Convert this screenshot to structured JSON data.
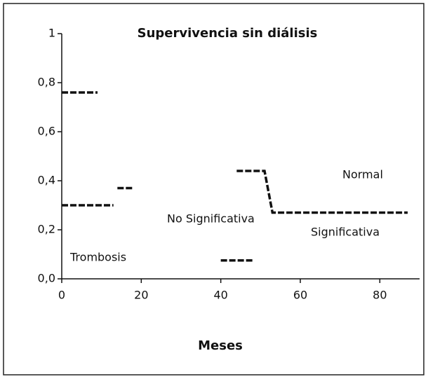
{
  "chart_data": {
    "type": "line",
    "title": "Supervivencia sin diálisis",
    "x_label": "Meses",
    "xlim": [
      0,
      90
    ],
    "ylim": [
      0,
      1
    ],
    "xticks": [
      0,
      20,
      40,
      60,
      80
    ],
    "yticks": [
      {
        "value": 0,
        "label": "0,0"
      },
      {
        "value": 0.2,
        "label": "0,2"
      },
      {
        "value": 0.4,
        "label": "0,4"
      },
      {
        "value": 0.6,
        "label": "0,6"
      },
      {
        "value": 0.8,
        "label": "0,8"
      },
      1
    ],
    "series": [
      {
        "color": "#111111",
        "x": [
          0,
          9,
          10,
          42,
          44,
          51,
          53,
          87
        ],
        "values": [
          0.76,
          0.76,
          null,
          null,
          0.44,
          0.44,
          0.27,
          0.27
        ]
      },
      {
        "color": "#111111",
        "x": [
          0,
          13,
          13.5,
          14,
          18
        ],
        "values": [
          0.3,
          0.3,
          null,
          0.37,
          0.37
        ]
      },
      {
        "color": "#111111",
        "x": [
          40,
          48
        ],
        "values": [
          0.075,
          0.075
        ]
      }
    ],
    "annotations": [
      "Normal",
      "No Significativa",
      "Significativa",
      "Trombosis"
    ]
  }
}
